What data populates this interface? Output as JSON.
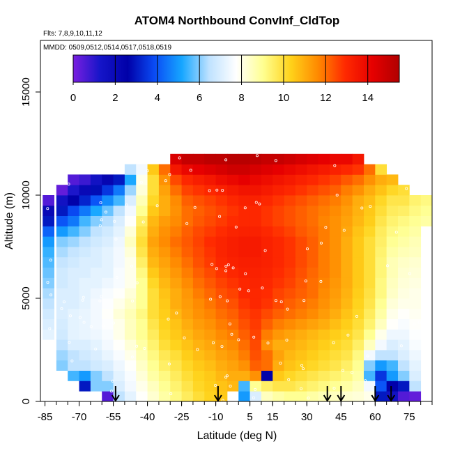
{
  "chart_data": {
    "type": "heatmap",
    "title": "ATOM4 Northbound ConvInf_CldTop",
    "subtitle_flights": "Flts: 7,8,9,10,11,12",
    "subtitle_dates": "MMDD: 0509,0512,0514,0517,0518,0519",
    "xlabel": "Latitude (deg N)",
    "ylabel": "Altitude (m)",
    "xlim": [
      -87,
      85
    ],
    "ylim": [
      0,
      17500
    ],
    "x_ticks": [
      -85,
      -70,
      -55,
      -40,
      -25,
      -10,
      5,
      15,
      30,
      45,
      60,
      75
    ],
    "x_minor_tick_step": 5,
    "y_ticks": [
      0,
      5000,
      10000,
      15000
    ],
    "colorbar": {
      "min": 0,
      "max": 15.5,
      "ticks": [
        0,
        2,
        4,
        6,
        8,
        10,
        12,
        14
      ],
      "colors": [
        "#7a1fe0",
        "#1515c8",
        "#0000a8",
        "#0a4cf5",
        "#16a6ff",
        "#bfe2ff",
        "#ffffff",
        "#ffff90",
        "#ffd21a",
        "#ff8a00",
        "#ff2a00",
        "#e60000",
        "#b00000"
      ]
    },
    "altitude_bins": [
      250,
      750,
      1250,
      1750,
      2250,
      2750,
      3250,
      3750,
      4250,
      4750,
      5250,
      5750,
      6250,
      6750,
      7250,
      7750,
      8250,
      8750,
      9250,
      9750,
      10250,
      10750,
      11250,
      11750
    ],
    "profiles": [
      {
        "lat0": -86,
        "values": [
          null,
          null,
          null,
          null,
          null,
          null,
          7.2,
          7.0,
          6.8,
          6.5,
          6.3,
          6.0,
          5.8,
          5.6,
          5.4,
          5.0,
          4.2,
          3.0,
          2.0,
          0.5,
          null,
          null,
          null,
          null
        ]
      },
      {
        "lat0": -80,
        "values": [
          null,
          null,
          null,
          6.0,
          6.2,
          6.5,
          6.8,
          6.9,
          7.0,
          7.0,
          7.0,
          6.8,
          6.8,
          6.6,
          6.3,
          6.0,
          5.0,
          4.0,
          3.0,
          1.5,
          0.3,
          null,
          null,
          null
        ]
      },
      {
        "lat0": -75,
        "values": [
          null,
          null,
          5.5,
          6.5,
          6.5,
          7.0,
          7.2,
          7.2,
          7.2,
          7.0,
          7.0,
          7.0,
          7.0,
          6.8,
          6.6,
          6.2,
          5.5,
          4.5,
          3.8,
          2.5,
          1.2,
          0.5,
          null,
          null
        ]
      },
      {
        "lat0": -70,
        "values": [
          null,
          3.0,
          5.0,
          6.5,
          6.8,
          7.0,
          7.3,
          7.3,
          7.3,
          7.2,
          7.2,
          7.2,
          7.0,
          7.0,
          6.8,
          6.5,
          6.0,
          5.5,
          4.5,
          3.2,
          2.0,
          0.8,
          null,
          null
        ]
      },
      {
        "lat0": -65,
        "values": [
          null,
          6.0,
          6.0,
          6.8,
          7.0,
          7.2,
          7.4,
          7.5,
          7.5,
          7.5,
          7.4,
          7.2,
          7.2,
          7.0,
          7.0,
          6.8,
          6.5,
          6.0,
          5.2,
          4.0,
          2.8,
          1.5,
          null,
          null
        ]
      },
      {
        "lat0": -60,
        "values": [
          0.5,
          6.0,
          6.5,
          7.0,
          7.3,
          7.5,
          7.6,
          7.7,
          7.8,
          7.7,
          7.6,
          7.4,
          7.2,
          7.2,
          7.2,
          7.0,
          6.8,
          6.4,
          5.8,
          4.8,
          3.5,
          2.2,
          null,
          null
        ]
      },
      {
        "lat0": -55,
        "values": [
          6.5,
          7.0,
          7.2,
          7.4,
          7.6,
          7.8,
          8.0,
          8.0,
          8.2,
          8.0,
          7.8,
          7.6,
          7.6,
          7.5,
          7.5,
          7.4,
          7.2,
          7.0,
          6.5,
          5.5,
          4.5,
          3.0,
          null,
          null
        ]
      },
      {
        "lat0": -50,
        "values": [
          7.2,
          7.5,
          7.6,
          7.8,
          8.0,
          8.2,
          8.5,
          8.5,
          8.6,
          8.4,
          8.2,
          8.0,
          8.0,
          8.0,
          8.2,
          8.5,
          8.2,
          7.8,
          7.5,
          7.0,
          6.2,
          5.2,
          6.5,
          null
        ]
      },
      {
        "lat0": -45,
        "values": [
          7.8,
          8.0,
          8.2,
          8.4,
          8.6,
          8.8,
          9.0,
          9.0,
          9.2,
          9.0,
          9.0,
          9.0,
          9.2,
          9.5,
          9.8,
          10.0,
          9.8,
          9.5,
          9.0,
          8.6,
          8.2,
          8.0,
          7.5,
          null
        ]
      },
      {
        "lat0": -40,
        "values": [
          8.3,
          8.5,
          8.8,
          9.0,
          9.2,
          9.4,
          9.6,
          9.8,
          10.0,
          10.0,
          10.0,
          10.2,
          10.5,
          10.8,
          11.0,
          11.2,
          11.0,
          10.8,
          10.5,
          10.2,
          10.0,
          10.0,
          10.5,
          null
        ]
      },
      {
        "lat0": -35,
        "values": [
          8.8,
          9.0,
          9.2,
          9.5,
          9.7,
          10.0,
          10.2,
          10.3,
          10.4,
          10.5,
          10.6,
          10.8,
          11.0,
          11.2,
          11.4,
          11.6,
          11.5,
          11.3,
          11.0,
          11.0,
          11.2,
          11.5,
          12.0,
          null
        ]
      },
      {
        "lat0": -30,
        "values": [
          9.2,
          9.4,
          9.6,
          9.8,
          10.0,
          10.3,
          10.5,
          10.6,
          10.8,
          11.0,
          11.0,
          11.2,
          11.4,
          11.6,
          11.8,
          12.0,
          11.8,
          11.6,
          11.5,
          11.6,
          12.0,
          12.5,
          13.5,
          14.5
        ]
      },
      {
        "lat0": -25,
        "values": [
          9.6,
          9.8,
          10.0,
          10.2,
          10.4,
          10.6,
          10.8,
          11.0,
          11.2,
          11.3,
          11.4,
          11.6,
          11.8,
          12.0,
          12.2,
          12.3,
          12.2,
          12.0,
          12.0,
          12.2,
          12.6,
          13.0,
          14.0,
          15.0
        ]
      },
      {
        "lat0": -20,
        "values": [
          10.0,
          10.2,
          10.3,
          10.5,
          10.7,
          10.9,
          11.1,
          11.3,
          11.5,
          11.6,
          11.8,
          12.0,
          12.2,
          12.4,
          12.5,
          12.6,
          12.5,
          12.3,
          12.2,
          12.4,
          12.8,
          13.3,
          14.2,
          15.0
        ]
      },
      {
        "lat0": -15,
        "values": [
          10.3,
          10.4,
          10.5,
          10.7,
          10.9,
          11.1,
          11.3,
          11.5,
          11.7,
          11.9,
          12.1,
          12.3,
          12.5,
          12.7,
          12.8,
          12.9,
          12.7,
          12.5,
          12.4,
          12.6,
          13.0,
          13.5,
          14.4,
          15.2
        ]
      },
      {
        "lat0": -10,
        "values": [
          10.5,
          10.6,
          10.8,
          11.0,
          11.2,
          11.4,
          11.6,
          11.8,
          12.0,
          12.2,
          12.4,
          12.6,
          12.8,
          13.0,
          13.1,
          13.1,
          12.9,
          12.7,
          12.6,
          12.8,
          13.2,
          13.8,
          14.6,
          15.2
        ]
      },
      {
        "lat0": -5,
        "values": [
          null,
          10.8,
          11.0,
          11.2,
          11.4,
          11.6,
          11.8,
          12.0,
          12.2,
          12.4,
          12.6,
          12.8,
          13.0,
          13.2,
          13.3,
          13.3,
          13.1,
          12.9,
          12.8,
          13.0,
          13.4,
          14.0,
          14.8,
          15.3
        ]
      },
      {
        "lat0": 0,
        "values": [
          5.0,
          5.5,
          11.0,
          11.5,
          11.8,
          12.0,
          12.2,
          12.4,
          12.6,
          12.8,
          13.0,
          13.0,
          13.2,
          13.3,
          13.4,
          13.4,
          13.2,
          13.0,
          13.0,
          13.2,
          13.6,
          14.2,
          14.8,
          15.3
        ]
      },
      {
        "lat0": 5,
        "values": [
          7.0,
          9.0,
          11.5,
          12.2,
          12.4,
          12.5,
          12.6,
          12.7,
          12.8,
          13.0,
          13.0,
          13.1,
          13.2,
          13.3,
          13.4,
          13.4,
          13.2,
          13.0,
          13.0,
          13.2,
          13.6,
          14.0,
          14.6,
          15.2
        ]
      },
      {
        "lat0": 10,
        "values": [
          8.5,
          9.5,
          2.5,
          12.0,
          12.0,
          11.5,
          11.8,
          12.2,
          12.5,
          12.8,
          12.9,
          13.0,
          13.1,
          13.2,
          13.2,
          13.2,
          13.0,
          12.8,
          12.8,
          13.0,
          13.4,
          13.8,
          14.4,
          15.0
        ]
      },
      {
        "lat0": 15,
        "values": [
          8.8,
          9.8,
          10.5,
          11.0,
          11.2,
          11.0,
          11.4,
          11.8,
          12.2,
          12.5,
          12.6,
          12.8,
          12.9,
          13.0,
          13.0,
          13.0,
          12.8,
          12.6,
          12.6,
          12.8,
          13.2,
          13.6,
          14.2,
          15.0
        ]
      },
      {
        "lat0": 20,
        "values": [
          9.0,
          9.8,
          10.2,
          10.6,
          10.8,
          11.0,
          11.2,
          11.6,
          12.0,
          12.2,
          12.4,
          12.6,
          12.7,
          12.8,
          12.8,
          12.8,
          12.6,
          12.4,
          12.4,
          12.6,
          13.0,
          13.4,
          14.0,
          14.8
        ]
      },
      {
        "lat0": 25,
        "values": [
          9.0,
          9.6,
          10.0,
          10.4,
          10.6,
          10.8,
          11.0,
          11.4,
          11.8,
          12.0,
          12.2,
          12.3,
          12.4,
          12.5,
          12.5,
          12.5,
          12.3,
          12.2,
          12.2,
          12.4,
          12.8,
          13.2,
          13.8,
          14.6
        ]
      },
      {
        "lat0": 30,
        "values": [
          8.8,
          9.4,
          9.8,
          10.2,
          10.4,
          10.6,
          10.8,
          11.2,
          11.6,
          11.8,
          12.0,
          12.0,
          12.1,
          12.2,
          12.2,
          12.2,
          12.1,
          12.0,
          12.0,
          12.2,
          12.6,
          13.0,
          13.6,
          14.4
        ]
      },
      {
        "lat0": 35,
        "values": [
          8.6,
          9.2,
          9.6,
          10.0,
          10.2,
          10.4,
          10.6,
          11.0,
          11.3,
          11.5,
          11.6,
          11.7,
          11.8,
          11.8,
          11.8,
          11.8,
          11.8,
          11.7,
          11.8,
          12.0,
          12.4,
          12.8,
          13.4,
          14.2
        ]
      },
      {
        "lat0": 40,
        "values": [
          8.5,
          9.0,
          9.4,
          9.8,
          10.0,
          10.2,
          10.4,
          10.7,
          11.0,
          11.2,
          11.3,
          11.4,
          11.5,
          11.5,
          11.5,
          11.5,
          11.5,
          11.5,
          11.6,
          11.8,
          12.2,
          12.6,
          13.2,
          14.0
        ]
      },
      {
        "lat0": 45,
        "values": [
          8.3,
          8.8,
          9.2,
          9.5,
          9.8,
          10.0,
          10.2,
          10.4,
          10.6,
          10.8,
          10.9,
          11.0,
          11.0,
          11.0,
          11.0,
          11.0,
          11.1,
          11.2,
          11.3,
          11.5,
          11.8,
          12.3,
          13.0,
          14.0
        ]
      },
      {
        "lat0": 50,
        "values": [
          8.2,
          8.5,
          8.8,
          9.0,
          9.2,
          9.5,
          9.8,
          10.0,
          10.2,
          10.3,
          10.4,
          10.5,
          10.5,
          10.5,
          10.5,
          10.5,
          10.6,
          10.8,
          10.9,
          11.0,
          11.5,
          12.0,
          12.8,
          13.5
        ]
      },
      {
        "lat0": 55,
        "values": [
          8.0,
          7.5,
          5.5,
          6.0,
          7.5,
          8.5,
          9.0,
          9.4,
          9.6,
          9.8,
          9.9,
          10.0,
          10.0,
          10.0,
          10.0,
          10.0,
          10.2,
          10.4,
          10.5,
          10.7,
          11.0,
          11.5,
          12.0,
          null
        ]
      },
      {
        "lat0": 60,
        "values": [
          3.0,
          4.0,
          3.5,
          5.0,
          6.5,
          7.5,
          8.0,
          8.5,
          8.8,
          9.0,
          9.2,
          9.2,
          9.3,
          9.3,
          9.4,
          9.5,
          9.6,
          9.8,
          10.0,
          10.2,
          10.6,
          11.0,
          10.0,
          null
        ]
      },
      {
        "lat0": 65,
        "values": [
          1.5,
          2.5,
          5.0,
          5.5,
          6.5,
          7.0,
          7.4,
          7.8,
          8.0,
          8.2,
          8.4,
          8.5,
          8.6,
          8.6,
          8.8,
          9.0,
          9.2,
          9.4,
          9.6,
          9.8,
          10.2,
          10.8,
          null,
          null
        ]
      },
      {
        "lat0": 70,
        "values": [
          0.5,
          3.0,
          6.0,
          6.5,
          7.0,
          7.2,
          7.4,
          7.6,
          7.8,
          8.0,
          8.1,
          8.2,
          8.3,
          8.4,
          8.6,
          8.8,
          9.0,
          9.2,
          9.5,
          9.8,
          10.0,
          null,
          null,
          null
        ]
      },
      {
        "lat0": 75,
        "values": [
          0.3,
          6.5,
          7.0,
          7.2,
          7.4,
          7.6,
          7.7,
          7.8,
          7.9,
          8.0,
          8.0,
          8.1,
          8.2,
          8.3,
          8.5,
          8.6,
          8.8,
          9.0,
          9.2,
          9.4,
          null,
          null,
          null,
          null
        ]
      },
      {
        "lat0": 80,
        "values": [
          null,
          null,
          null,
          null,
          null,
          null,
          null,
          null,
          null,
          null,
          null,
          null,
          null,
          null,
          null,
          null,
          null,
          8.8,
          9.0,
          9.2,
          null,
          null,
          null,
          null
        ]
      }
    ],
    "profile_width_deg": 5,
    "bin_height_m": 500,
    "highlight_arrows_lat": [
      -54,
      -9,
      39,
      45,
      60,
      67
    ],
    "grid": false,
    "legend_position": "top"
  }
}
